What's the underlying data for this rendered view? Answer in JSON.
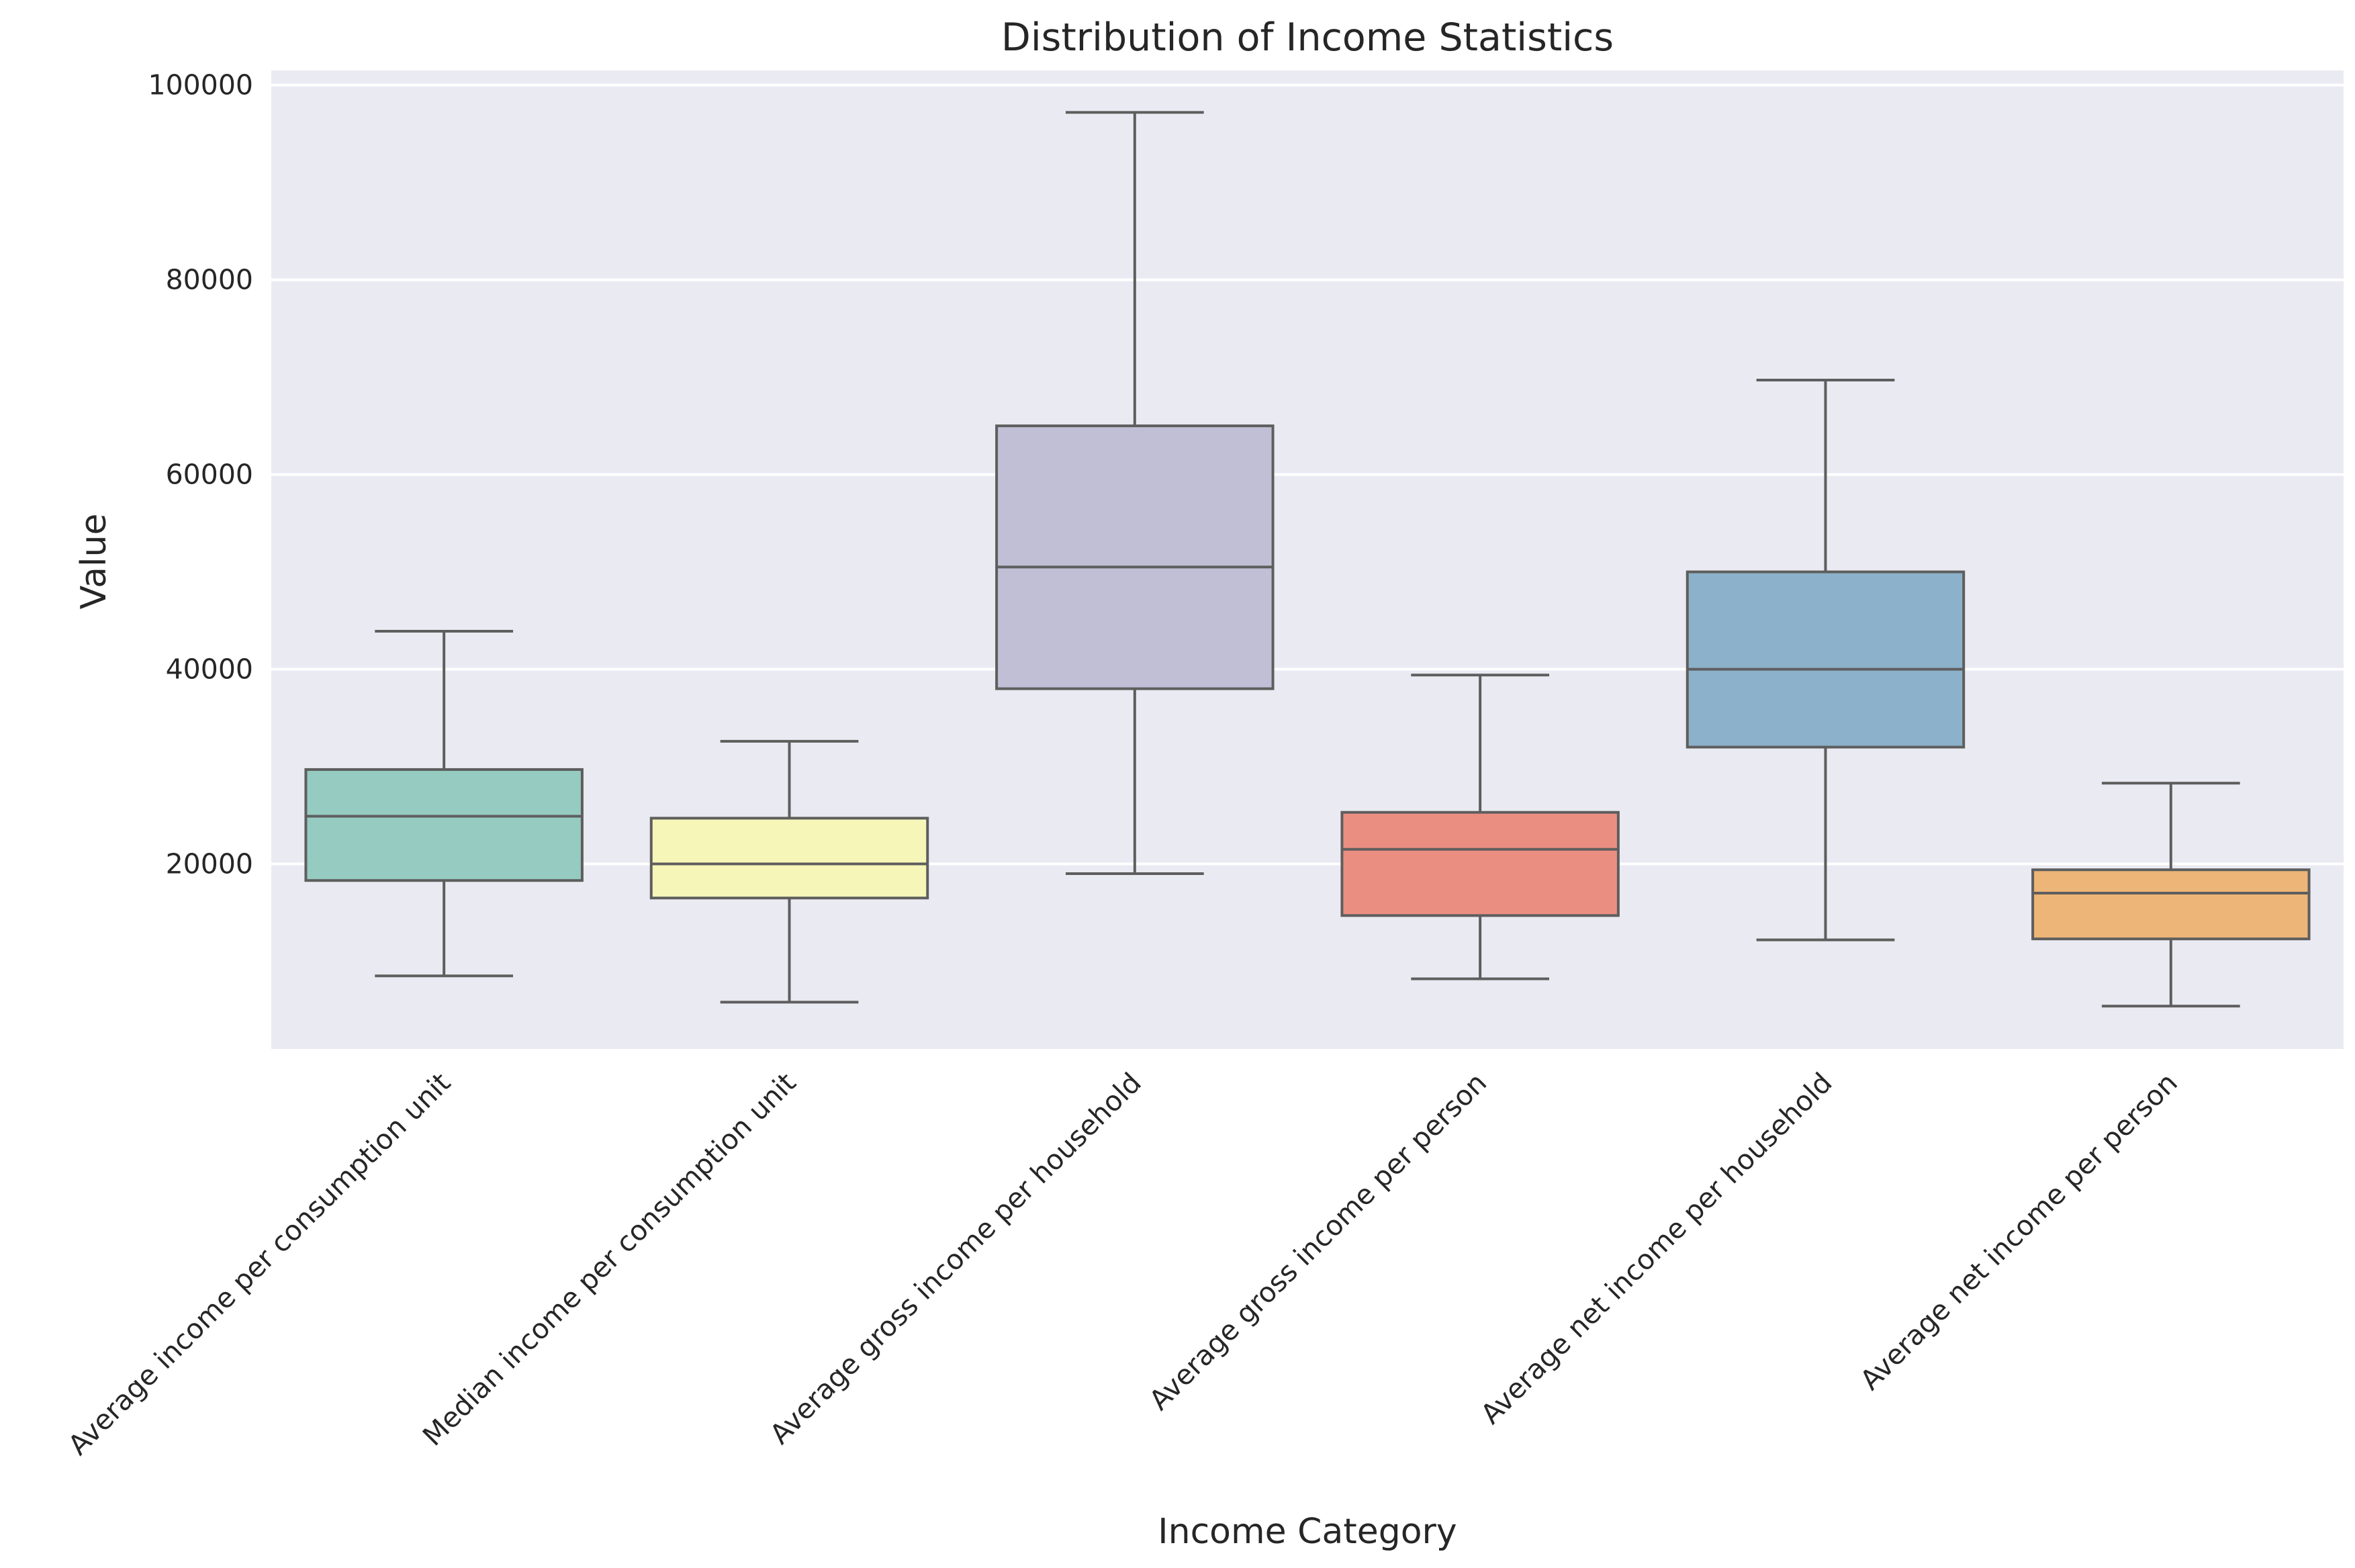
{
  "chart_data": {
    "type": "box",
    "title": "Distribution of Income Statistics",
    "xlabel": "Income Category",
    "ylabel": "Value",
    "ylim": [
      1000,
      101500
    ],
    "yticks": [
      20000,
      40000,
      60000,
      80000,
      100000
    ],
    "ytick_labels": [
      "20000",
      "40000",
      "60000",
      "80000",
      "100000"
    ],
    "grid": true,
    "categories": [
      "Average income per consumption unit",
      "Median income per consumption unit",
      "Average gross income per household",
      "Average gross income per person",
      "Average net income per household",
      "Average net income per person"
    ],
    "boxes": [
      {
        "whisker_low": 8500,
        "q1": 18300,
        "median": 24900,
        "q3": 29700,
        "whisker_high": 43900,
        "color": "#95cbc0"
      },
      {
        "whisker_low": 5800,
        "q1": 16500,
        "median": 20000,
        "q3": 24700,
        "whisker_high": 32600,
        "color": "#f7f6b9"
      },
      {
        "whisker_low": 19000,
        "q1": 38000,
        "median": 50500,
        "q3": 65000,
        "whisker_high": 97200,
        "color": "#c1bfd6"
      },
      {
        "whisker_low": 8200,
        "q1": 14700,
        "median": 21500,
        "q3": 25300,
        "whisker_high": 39400,
        "color": "#eb8e82"
      },
      {
        "whisker_low": 12200,
        "q1": 32000,
        "median": 40000,
        "q3": 50000,
        "whisker_high": 69700,
        "color": "#8cb1ca"
      },
      {
        "whisker_low": 5400,
        "q1": 12300,
        "median": 17000,
        "q3": 19400,
        "whisker_high": 28300,
        "color": "#edb577"
      }
    ]
  }
}
